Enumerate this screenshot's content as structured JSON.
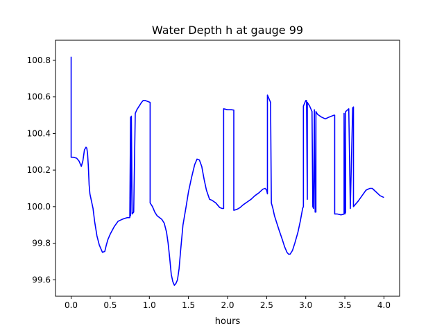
{
  "chart_data": {
    "type": "line",
    "title": "Water Depth h at gauge 99",
    "xlabel": "hours",
    "ylabel": "",
    "xlim": [
      -0.2,
      4.2
    ],
    "ylim": [
      99.51,
      100.91
    ],
    "xticks": [
      0.0,
      0.5,
      1.0,
      1.5,
      2.0,
      2.5,
      3.0,
      3.5,
      4.0
    ],
    "xtick_labels": [
      "0.0",
      "0.5",
      "1.0",
      "1.5",
      "2.0",
      "2.5",
      "3.0",
      "3.5",
      "4.0"
    ],
    "yticks": [
      99.6,
      99.8,
      100.0,
      100.2,
      100.4,
      100.6,
      100.8
    ],
    "ytick_labels": [
      "99.6",
      "99.8",
      "100.0",
      "100.2",
      "100.4",
      "100.6",
      "100.8"
    ],
    "grid": false,
    "legend": "none",
    "series": [
      {
        "color": "#0000ff",
        "x": [
          0.0,
          0.0,
          0.0,
          0.03,
          0.07,
          0.1,
          0.13,
          0.15,
          0.17,
          0.19,
          0.2,
          0.21,
          0.22,
          0.23,
          0.24,
          0.25,
          0.26,
          0.28,
          0.3,
          0.33,
          0.36,
          0.4,
          0.43,
          0.45,
          0.47,
          0.5,
          0.55,
          0.6,
          0.65,
          0.68,
          0.72,
          0.75,
          0.76,
          0.76,
          0.77,
          0.78,
          0.78,
          0.8,
          0.82,
          0.82,
          0.84,
          0.87,
          0.9,
          0.92,
          0.95,
          0.98,
          1.01,
          1.01,
          1.04,
          1.07,
          1.1,
          1.13,
          1.16,
          1.19,
          1.22,
          1.24,
          1.26,
          1.28,
          1.3,
          1.32,
          1.34,
          1.36,
          1.38,
          1.4,
          1.43,
          1.47,
          1.5,
          1.54,
          1.58,
          1.61,
          1.64,
          1.67,
          1.7,
          1.73,
          1.77,
          1.8,
          1.85,
          1.9,
          1.93,
          1.95,
          1.95,
          2.0,
          2.05,
          2.08,
          2.08,
          2.12,
          2.16,
          2.2,
          2.25,
          2.3,
          2.35,
          2.4,
          2.45,
          2.48,
          2.5,
          2.51,
          2.51,
          2.54,
          2.55,
          2.56,
          2.58,
          2.6,
          2.63,
          2.66,
          2.7,
          2.73,
          2.76,
          2.78,
          2.8,
          2.83,
          2.86,
          2.9,
          2.93,
          2.96,
          2.97,
          2.97,
          2.99,
          3.0,
          3.01,
          3.02,
          3.02,
          3.05,
          3.08,
          3.09,
          3.1,
          3.11,
          3.12,
          3.13,
          3.13,
          3.15,
          3.2,
          3.25,
          3.3,
          3.36,
          3.37,
          3.37,
          3.4,
          3.45,
          3.48,
          3.49,
          3.49,
          3.5,
          3.51,
          3.51,
          3.55,
          3.57,
          3.57,
          3.6,
          3.61,
          3.61,
          3.63,
          3.67,
          3.72,
          3.77,
          3.82,
          3.85,
          3.9,
          3.95,
          4.0
        ],
        "y": [
          100.82,
          100.82,
          100.27,
          100.27,
          100.265,
          100.25,
          100.22,
          100.25,
          100.31,
          100.325,
          100.32,
          100.29,
          100.22,
          100.12,
          100.07,
          100.05,
          100.03,
          99.99,
          99.92,
          99.84,
          99.79,
          99.75,
          99.755,
          99.79,
          99.82,
          99.85,
          99.89,
          99.92,
          99.93,
          99.935,
          99.94,
          99.94,
          100.49,
          99.95,
          100.495,
          99.96,
          99.96,
          99.97,
          100.51,
          100.51,
          100.53,
          100.55,
          100.57,
          100.58,
          100.58,
          100.575,
          100.57,
          100.02,
          100.0,
          99.97,
          99.95,
          99.94,
          99.93,
          99.91,
          99.86,
          99.8,
          99.72,
          99.63,
          99.59,
          99.57,
          99.58,
          99.6,
          99.66,
          99.76,
          99.9,
          100.0,
          100.08,
          100.16,
          100.23,
          100.26,
          100.255,
          100.22,
          100.15,
          100.09,
          100.04,
          100.035,
          100.02,
          99.995,
          99.99,
          99.99,
          100.535,
          100.53,
          100.53,
          100.528,
          99.98,
          99.985,
          99.995,
          100.01,
          100.025,
          100.04,
          100.06,
          100.075,
          100.095,
          100.1,
          100.09,
          100.07,
          100.61,
          100.58,
          100.57,
          100.02,
          99.99,
          99.95,
          99.91,
          99.87,
          99.82,
          99.78,
          99.75,
          99.74,
          99.74,
          99.76,
          99.8,
          99.86,
          99.92,
          99.99,
          100.0,
          100.55,
          100.57,
          100.58,
          100.58,
          100.04,
          100.57,
          100.55,
          100.52,
          100.0,
          99.99,
          100.53,
          99.97,
          99.97,
          100.52,
          100.505,
          100.49,
          100.48,
          100.49,
          100.5,
          100.5,
          99.96,
          99.96,
          99.955,
          99.958,
          99.96,
          100.51,
          99.96,
          99.97,
          100.52,
          100.535,
          99.99,
          99.995,
          100.54,
          100.545,
          100.0,
          100.01,
          100.03,
          100.06,
          100.09,
          100.1,
          100.1,
          100.08,
          100.06,
          100.05
        ]
      }
    ]
  }
}
